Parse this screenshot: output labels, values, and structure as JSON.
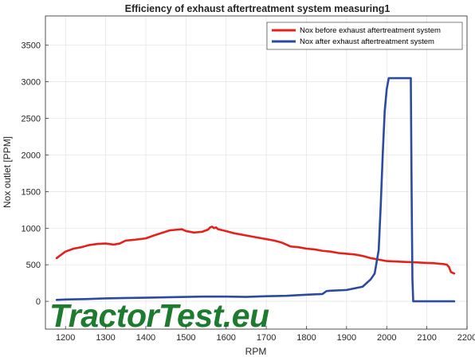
{
  "chart_data": {
    "type": "line",
    "title": "Efficiency of exhaust aftertreatment system measuring1",
    "xlabel": "RPM",
    "ylabel": "Nox outlet [PPM]",
    "xlim": [
      1150,
      2200
    ],
    "ylim": [
      -380,
      3900
    ],
    "xticks": [
      1200,
      1300,
      1400,
      1500,
      1600,
      1700,
      1800,
      1900,
      2000,
      2100,
      2200
    ],
    "yticks": [
      0,
      500,
      1000,
      1500,
      2000,
      2500,
      3000,
      3500
    ],
    "grid": true,
    "legend_position": "top-right",
    "series": [
      {
        "name": "Nox before exhaust aftertreatment system",
        "color": "#e8201c",
        "x": [
          1178,
          1185,
          1200,
          1220,
          1240,
          1260,
          1280,
          1300,
          1320,
          1335,
          1350,
          1370,
          1400,
          1420,
          1440,
          1460,
          1480,
          1490,
          1500,
          1520,
          1540,
          1555,
          1560,
          1565,
          1570,
          1575,
          1580,
          1600,
          1620,
          1650,
          1680,
          1700,
          1720,
          1740,
          1760,
          1780,
          1800,
          1820,
          1840,
          1860,
          1880,
          1900,
          1920,
          1940,
          1960,
          1980,
          2000,
          2020,
          2040,
          2060,
          2080,
          2100,
          2120,
          2140,
          2150,
          2155,
          2160,
          2168
        ],
        "y": [
          590,
          620,
          680,
          720,
          740,
          770,
          785,
          790,
          775,
          790,
          830,
          840,
          860,
          900,
          935,
          970,
          980,
          985,
          960,
          940,
          950,
          980,
          1010,
          1020,
          1000,
          1010,
          985,
          960,
          930,
          900,
          870,
          850,
          830,
          800,
          750,
          740,
          720,
          710,
          690,
          680,
          660,
          650,
          640,
          620,
          590,
          570,
          550,
          545,
          540,
          535,
          530,
          525,
          520,
          510,
          500,
          470,
          400,
          380
        ]
      },
      {
        "name": "Nox after exhaust aftertreatment system",
        "color": "#2c4a9f",
        "x": [
          1178,
          1200,
          1250,
          1300,
          1350,
          1400,
          1450,
          1500,
          1550,
          1600,
          1650,
          1700,
          1750,
          1800,
          1840,
          1850,
          1860,
          1900,
          1940,
          1960,
          1970,
          1980,
          1985,
          1990,
          1995,
          2000,
          2005,
          2008,
          2010,
          2030,
          2060,
          2062,
          2064,
          2066,
          2068,
          2100,
          2150,
          2168
        ],
        "y": [
          20,
          25,
          30,
          40,
          45,
          50,
          55,
          60,
          65,
          65,
          60,
          70,
          75,
          90,
          100,
          140,
          145,
          155,
          200,
          300,
          380,
          700,
          1300,
          2000,
          2600,
          2900,
          3050,
          3050,
          3050,
          3050,
          3050,
          1500,
          300,
          0,
          0,
          0,
          0,
          0
        ]
      }
    ]
  },
  "watermark": {
    "text": "TractorTest.eu"
  }
}
